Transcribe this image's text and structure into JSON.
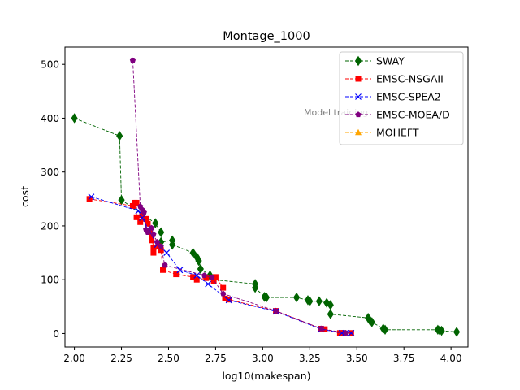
{
  "chart_data": {
    "type": "line",
    "title": "Montage_1000",
    "xlabel": "log10(makespan)",
    "ylabel": "cost",
    "xlim": [
      1.95,
      4.09
    ],
    "ylim": [
      -25,
      532
    ],
    "xticks": [
      "2.00",
      "2.25",
      "2.50",
      "2.75",
      "3.00",
      "3.25",
      "3.50",
      "3.75",
      "4.00"
    ],
    "xtick_values": [
      2.0,
      2.25,
      2.5,
      2.75,
      3.0,
      3.25,
      3.5,
      3.75,
      4.0
    ],
    "yticks": [
      "0",
      "100",
      "200",
      "300",
      "400",
      "500"
    ],
    "ytick_values": [
      0,
      100,
      200,
      300,
      400,
      500
    ],
    "grid": false,
    "legend_position": "top-right",
    "annotation": "Model training",
    "series": [
      {
        "name": "SWAY",
        "color": "#006400",
        "marker": "diamond",
        "points": [
          [
            2.0,
            400
          ],
          [
            2.24,
            367
          ],
          [
            2.25,
            248
          ],
          [
            2.43,
            205
          ],
          [
            2.46,
            188
          ],
          [
            2.46,
            170
          ],
          [
            2.52,
            173
          ],
          [
            2.52,
            165
          ],
          [
            2.63,
            150
          ],
          [
            2.65,
            142
          ],
          [
            2.66,
            135
          ],
          [
            2.67,
            120
          ],
          [
            2.72,
            108
          ],
          [
            2.74,
            100
          ],
          [
            2.96,
            92
          ],
          [
            2.96,
            85
          ],
          [
            3.01,
            68
          ],
          [
            3.02,
            67
          ],
          [
            3.18,
            67
          ],
          [
            3.24,
            62
          ],
          [
            3.25,
            60
          ],
          [
            3.3,
            60
          ],
          [
            3.34,
            57
          ],
          [
            3.36,
            53
          ],
          [
            3.36,
            36
          ],
          [
            3.56,
            29
          ],
          [
            3.57,
            24
          ],
          [
            3.58,
            21
          ],
          [
            3.64,
            9
          ],
          [
            3.65,
            7
          ],
          [
            3.93,
            7
          ],
          [
            3.94,
            6
          ],
          [
            3.95,
            5
          ],
          [
            4.03,
            3
          ]
        ]
      },
      {
        "name": "EMSC-NSGAII",
        "color": "#ff0000",
        "marker": "square",
        "points": [
          [
            2.08,
            250
          ],
          [
            2.31,
            237
          ],
          [
            2.32,
            243
          ],
          [
            2.33,
            243
          ],
          [
            2.33,
            216
          ],
          [
            2.35,
            207
          ],
          [
            2.36,
            220
          ],
          [
            2.38,
            213
          ],
          [
            2.39,
            204
          ],
          [
            2.4,
            189
          ],
          [
            2.41,
            173
          ],
          [
            2.41,
            182
          ],
          [
            2.42,
            160
          ],
          [
            2.42,
            150
          ],
          [
            2.45,
            162
          ],
          [
            2.46,
            155
          ],
          [
            2.47,
            118
          ],
          [
            2.54,
            110
          ],
          [
            2.63,
            105
          ],
          [
            2.65,
            100
          ],
          [
            2.7,
            103
          ],
          [
            2.74,
            98
          ],
          [
            2.75,
            105
          ],
          [
            2.79,
            85
          ],
          [
            2.8,
            65
          ],
          [
            2.82,
            63
          ],
          [
            3.07,
            42
          ],
          [
            3.31,
            9
          ],
          [
            3.33,
            8
          ],
          [
            3.41,
            1
          ],
          [
            3.42,
            1
          ],
          [
            3.43,
            1
          ],
          [
            3.47,
            1
          ]
        ]
      },
      {
        "name": "EMSC-SPEA2",
        "color": "#0000ff",
        "marker": "x",
        "points": [
          [
            2.09,
            254
          ],
          [
            2.34,
            228
          ],
          [
            2.36,
            215
          ],
          [
            2.39,
            195
          ],
          [
            2.44,
            165
          ],
          [
            2.49,
            150
          ],
          [
            2.56,
            118
          ],
          [
            2.65,
            108
          ],
          [
            2.71,
            92
          ],
          [
            2.82,
            62
          ],
          [
            3.07,
            41
          ],
          [
            3.31,
            8
          ],
          [
            3.42,
            1
          ],
          [
            3.44,
            1
          ],
          [
            3.47,
            1
          ]
        ]
      },
      {
        "name": "EMSC-MOEA/D",
        "color": "#800080",
        "marker": "pentagon",
        "points": [
          [
            2.31,
            507
          ],
          [
            2.35,
            236
          ],
          [
            2.36,
            230
          ],
          [
            2.37,
            225
          ],
          [
            2.38,
            193
          ],
          [
            2.39,
            188
          ],
          [
            2.41,
            196
          ],
          [
            2.42,
            184
          ],
          [
            2.44,
            170
          ],
          [
            2.46,
            162
          ],
          [
            2.48,
            127
          ],
          [
            2.69,
            108
          ],
          [
            2.73,
            104
          ],
          [
            2.79,
            74
          ],
          [
            3.07,
            42
          ],
          [
            3.31,
            9
          ],
          [
            3.44,
            1
          ]
        ]
      },
      {
        "name": "MOHEFT",
        "color": "#ffa500",
        "marker": "triangle",
        "points": []
      }
    ]
  }
}
